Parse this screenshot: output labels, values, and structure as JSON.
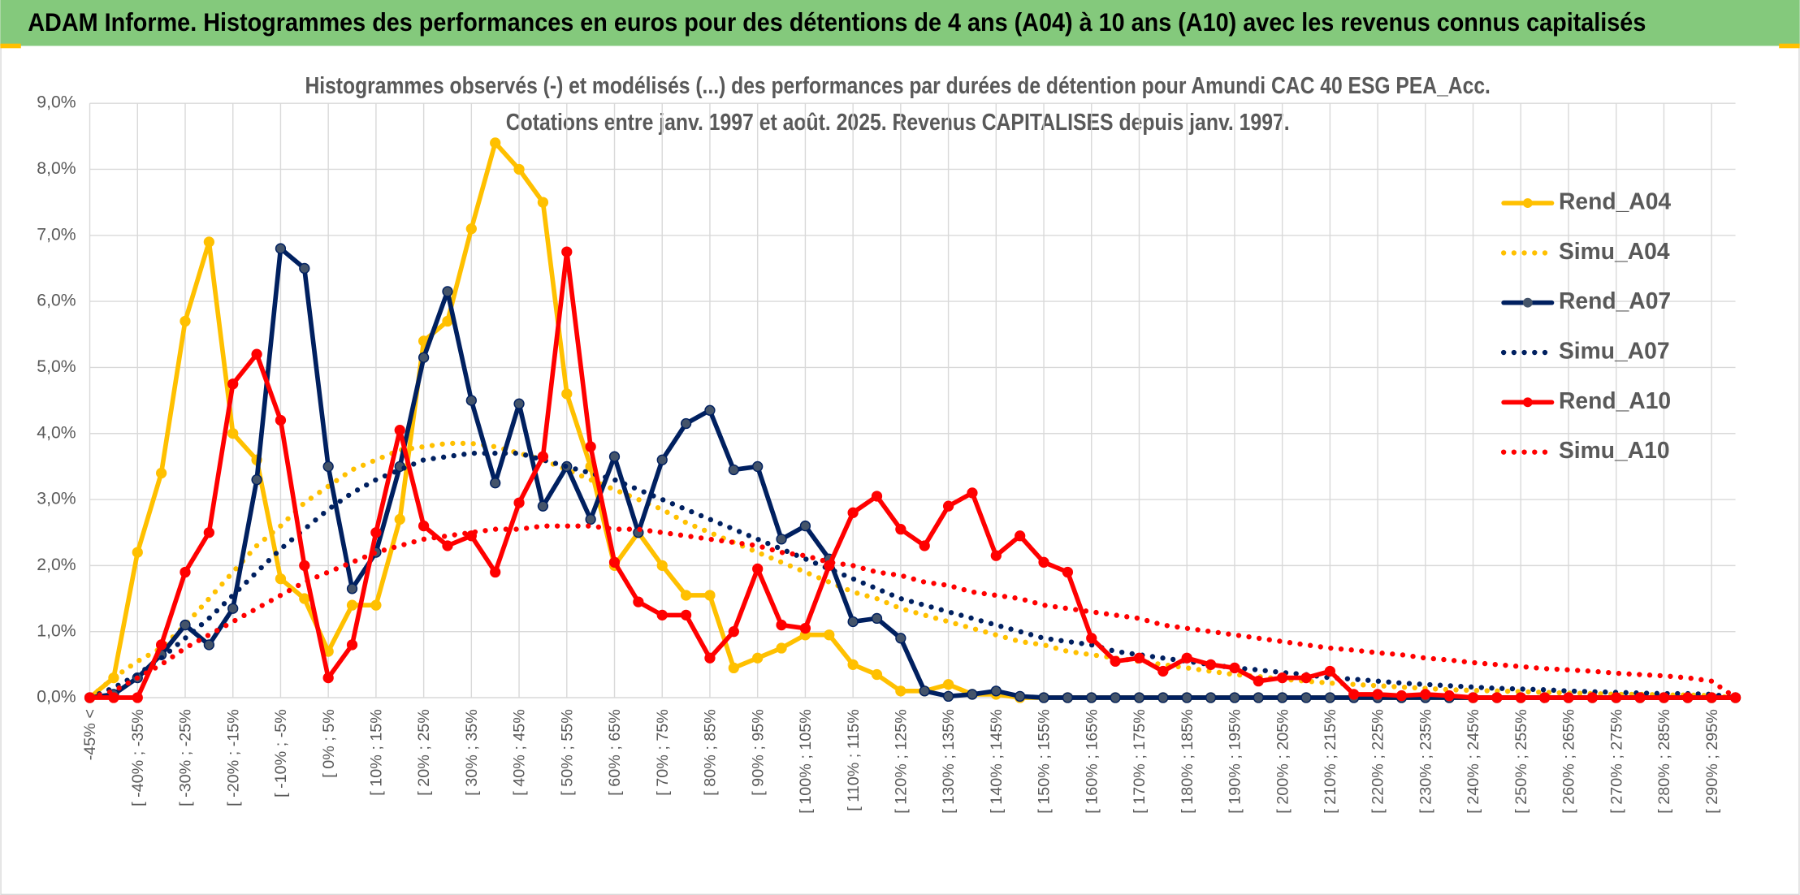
{
  "page_title": "ADAM Informe. Histogrammes des performances en euros pour des détentions de 4 ans (A04) à 10 ans (A10) avec les revenus connus capitalisés",
  "chart_data": {
    "type": "line",
    "title": "Histogrammes observés (-) et modélisés (...) des performances par durées de détention pour Amundi CAC 40 ESG PEA_Acc.",
    "subtitle": "Cotations entre janv. 1997 et août. 2025. Revenus CAPITALISES depuis janv. 1997.",
    "categories": [
      "-45% <",
      null,
      "[ -40% ; -35%",
      null,
      "[ -30% ; -25%",
      null,
      "[ -20% ; -15%",
      null,
      "[ -10% ; -5%",
      null,
      "[ 0% ; 5%",
      null,
      "[ 10% ; 15%",
      null,
      "[ 20% ; 25%",
      null,
      "[ 30% ; 35%",
      null,
      "[ 40% ; 45%",
      null,
      "[ 50% ; 55%",
      null,
      "[ 60% ; 65%",
      null,
      "[ 70% ; 75%",
      null,
      "[ 80% ; 85%",
      null,
      "[ 90% ; 95%",
      null,
      "[ 100% ; 105%",
      null,
      "[ 110% ; 115%",
      null,
      "[ 120% ; 125%",
      null,
      "[ 130% ; 135%",
      null,
      "[ 140% ; 145%",
      null,
      "[ 150% ; 155%",
      null,
      "[ 160% ; 165%",
      null,
      "[ 170% ; 175%",
      null,
      "[ 180% ; 185%",
      null,
      "[ 190% ; 195%",
      null,
      "[ 200% ; 205%",
      null,
      "[ 210% ; 215%",
      null,
      "[ 220% ; 225%",
      null,
      "[ 230% ; 235%",
      null,
      "[ 240% ; 245%",
      null,
      "[ 250% ; 255%",
      null,
      "[ 260% ; 265%",
      null,
      "[ 270% ; 275%",
      null,
      "[ 280% ; 285%",
      null,
      "[ 290% ; 295%",
      null
    ],
    "ylim": [
      0,
      9
    ],
    "yticks": [
      {
        "value": 0,
        "label": "0,0%"
      },
      {
        "value": 1,
        "label": "1,0%"
      },
      {
        "value": 2,
        "label": "2,0%"
      },
      {
        "value": 3,
        "label": "3,0%"
      },
      {
        "value": 4,
        "label": "4,0%"
      },
      {
        "value": 5,
        "label": "5,0%"
      },
      {
        "value": 6,
        "label": "6,0%"
      },
      {
        "value": 7,
        "label": "7,0%"
      },
      {
        "value": 8,
        "label": "8,0%"
      },
      {
        "value": 9,
        "label": "9,0%"
      }
    ],
    "grid": true,
    "legend": "right",
    "series": [
      {
        "name": "Rend_A04",
        "color": "#ffc000",
        "style": "solid",
        "markers": true,
        "values": [
          0,
          0.3,
          2.2,
          3.4,
          5.7,
          6.9,
          4.0,
          3.6,
          1.8,
          1.5,
          0.7,
          1.4,
          1.4,
          2.7,
          5.4,
          5.7,
          7.1,
          8.4,
          8.0,
          7.5,
          4.6,
          3.5,
          2.0,
          2.5,
          2.0,
          1.55,
          1.55,
          0.45,
          0.6,
          0.75,
          0.95,
          0.95,
          0.5,
          0.35,
          0.1,
          0.1,
          0.2,
          0.05,
          0.05,
          0,
          0,
          0,
          0,
          0,
          0,
          0,
          0,
          0,
          0,
          0,
          0,
          0,
          0,
          0,
          0,
          0,
          0,
          0,
          0,
          0,
          0,
          0,
          0,
          0,
          0,
          0,
          0,
          0,
          0,
          0
        ]
      },
      {
        "name": "Simu_A04",
        "color": "#ffc000",
        "style": "dotted",
        "markers": false,
        "values": [
          0,
          0.3,
          0.55,
          0.75,
          1.1,
          1.5,
          1.9,
          2.3,
          2.6,
          2.95,
          3.2,
          3.45,
          3.6,
          3.75,
          3.8,
          3.85,
          3.85,
          3.8,
          3.7,
          3.6,
          3.45,
          3.3,
          3.15,
          3.0,
          2.85,
          2.65,
          2.5,
          2.35,
          2.2,
          2.05,
          1.9,
          1.75,
          1.6,
          1.5,
          1.35,
          1.25,
          1.15,
          1.05,
          0.95,
          0.85,
          0.8,
          0.7,
          0.65,
          0.6,
          0.55,
          0.5,
          0.45,
          0.4,
          0.35,
          0.32,
          0.28,
          0.25,
          0.22,
          0.2,
          0.18,
          0.16,
          0.14,
          0.12,
          0.11,
          0.1,
          0.09,
          0.08,
          0.07,
          0.06,
          0.05,
          0.05,
          0.04,
          0.04,
          0.03,
          0
        ]
      },
      {
        "name": "Rend_A07",
        "color": "#002060",
        "style": "solid",
        "markers": true,
        "values": [
          0,
          0.05,
          0.3,
          0.65,
          1.1,
          0.8,
          1.35,
          3.3,
          6.8,
          6.5,
          3.5,
          1.65,
          2.2,
          3.5,
          5.15,
          6.15,
          4.5,
          3.25,
          4.45,
          2.9,
          3.5,
          2.7,
          3.65,
          2.5,
          3.6,
          4.15,
          4.35,
          3.45,
          3.5,
          2.4,
          2.6,
          2.1,
          1.15,
          1.2,
          0.9,
          0.1,
          0.02,
          0.05,
          0.1,
          0.02,
          0,
          0,
          0,
          0,
          0,
          0,
          0,
          0,
          0,
          0,
          0,
          0,
          0,
          0,
          0,
          0,
          0,
          0,
          0,
          0,
          0,
          0,
          0,
          0,
          0,
          0,
          0,
          0,
          0,
          0
        ]
      },
      {
        "name": "Simu_A07",
        "color": "#002060",
        "style": "dotted",
        "markers": false,
        "values": [
          0,
          0.15,
          0.35,
          0.6,
          0.9,
          1.2,
          1.55,
          1.9,
          2.25,
          2.55,
          2.85,
          3.1,
          3.3,
          3.45,
          3.6,
          3.65,
          3.7,
          3.7,
          3.7,
          3.6,
          3.5,
          3.4,
          3.3,
          3.15,
          3.0,
          2.85,
          2.7,
          2.55,
          2.4,
          2.25,
          2.1,
          1.95,
          1.8,
          1.65,
          1.5,
          1.4,
          1.3,
          1.2,
          1.1,
          1.0,
          0.9,
          0.85,
          0.8,
          0.7,
          0.65,
          0.6,
          0.55,
          0.5,
          0.45,
          0.42,
          0.38,
          0.35,
          0.3,
          0.28,
          0.25,
          0.22,
          0.2,
          0.18,
          0.16,
          0.14,
          0.13,
          0.12,
          0.1,
          0.09,
          0.08,
          0.07,
          0.06,
          0.06,
          0.05,
          0
        ]
      },
      {
        "name": "Rend_A10",
        "color": "#ff0000",
        "style": "solid",
        "markers": true,
        "values": [
          0,
          0,
          0,
          0.8,
          1.9,
          2.5,
          4.75,
          5.2,
          4.2,
          2.0,
          0.3,
          0.8,
          2.5,
          4.05,
          2.6,
          2.3,
          2.45,
          1.9,
          2.95,
          3.65,
          6.75,
          3.8,
          2.05,
          1.45,
          1.25,
          1.25,
          0.6,
          1.0,
          1.95,
          1.1,
          1.05,
          2.0,
          2.8,
          3.05,
          2.55,
          2.3,
          2.9,
          3.1,
          2.15,
          2.45,
          2.05,
          1.9,
          0.9,
          0.55,
          0.6,
          0.4,
          0.6,
          0.5,
          0.45,
          0.25,
          0.3,
          0.3,
          0.4,
          0.05,
          0.05,
          0.03,
          0.05,
          0.03,
          0,
          0,
          0,
          0,
          0,
          0,
          0,
          0,
          0,
          0,
          0,
          0
        ]
      },
      {
        "name": "Simu_A10",
        "color": "#ff0000",
        "style": "dotted",
        "markers": false,
        "values": [
          0,
          0.1,
          0.3,
          0.5,
          0.75,
          0.95,
          1.15,
          1.35,
          1.55,
          1.75,
          1.9,
          2.05,
          2.2,
          2.3,
          2.4,
          2.45,
          2.5,
          2.55,
          2.55,
          2.6,
          2.6,
          2.6,
          2.55,
          2.55,
          2.5,
          2.45,
          2.4,
          2.35,
          2.3,
          2.2,
          2.15,
          2.05,
          2.0,
          1.9,
          1.85,
          1.75,
          1.7,
          1.6,
          1.55,
          1.5,
          1.4,
          1.35,
          1.3,
          1.25,
          1.2,
          1.1,
          1.05,
          1.0,
          0.95,
          0.9,
          0.85,
          0.8,
          0.75,
          0.72,
          0.68,
          0.65,
          0.6,
          0.57,
          0.53,
          0.5,
          0.47,
          0.44,
          0.42,
          0.4,
          0.37,
          0.35,
          0.33,
          0.3,
          0.25,
          0
        ]
      }
    ]
  }
}
